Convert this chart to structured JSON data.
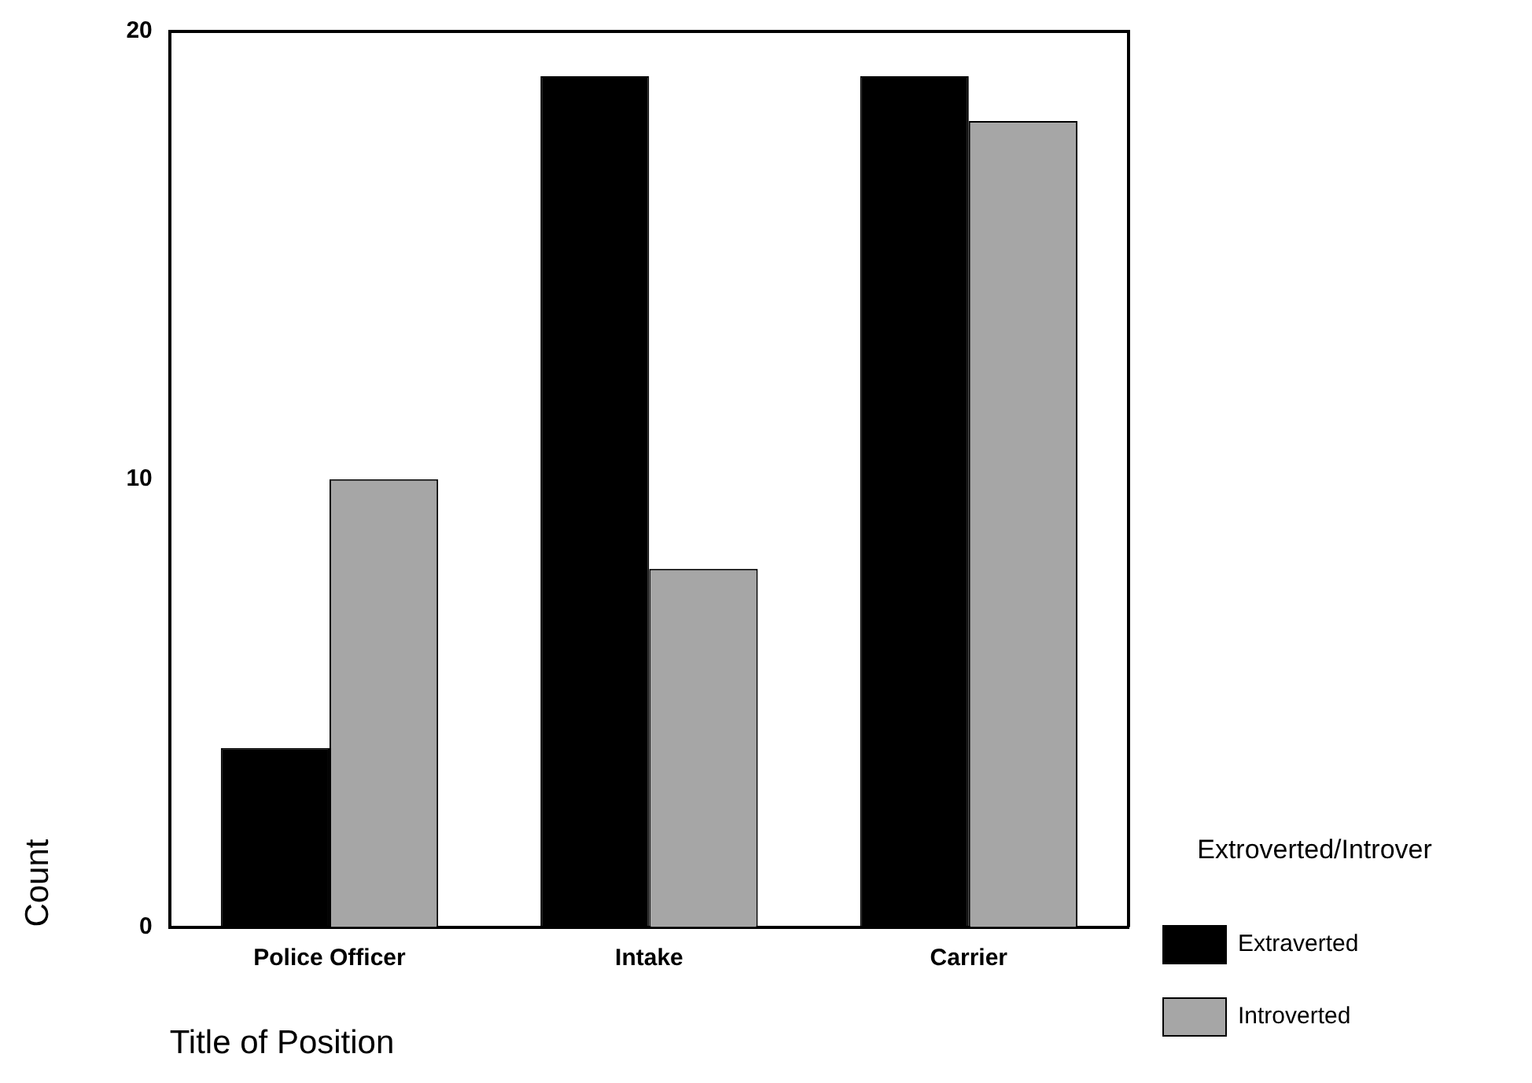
{
  "chart_data": {
    "type": "bar",
    "categories": [
      "Police Officer",
      "Intake",
      "Carrier"
    ],
    "series": [
      {
        "name": "Extraverted",
        "color": "#000000",
        "values": [
          4,
          19,
          19
        ]
      },
      {
        "name": "Introverted",
        "color": "#a6a6a6",
        "values": [
          10,
          8,
          18
        ]
      }
    ],
    "xlabel": "Title of Position",
    "ylabel": "Count",
    "legend_title": "Extroverted/Introver",
    "ylim": [
      0,
      20
    ],
    "yticks": [
      0,
      10,
      20
    ],
    "grid": false,
    "legend": "right"
  }
}
